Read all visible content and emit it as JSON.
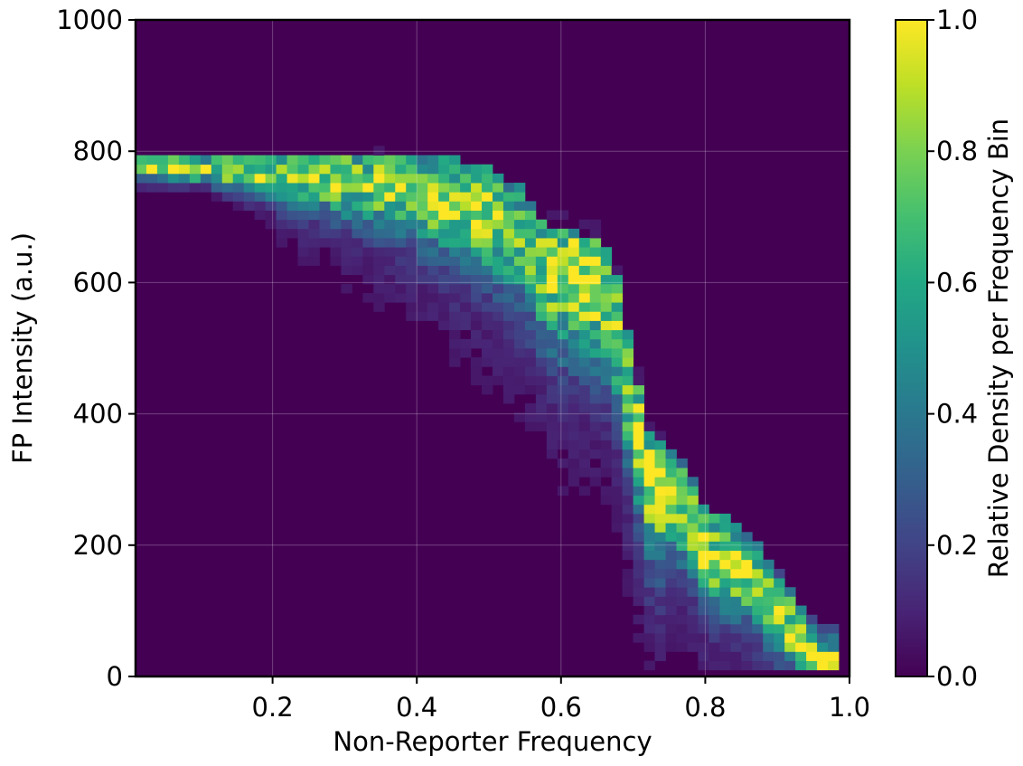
{
  "chart_data": {
    "type": "heatmap",
    "title": "",
    "xlabel": "Non-Reporter Frequency",
    "ylabel": "FP Intensity (a.u.)",
    "colorbar_label": "Relative Density per Frequency Bin",
    "xlim": [
      0.01,
      1.0
    ],
    "ylim": [
      0,
      1000
    ],
    "x_ticks": [
      0.2,
      0.4,
      0.6,
      0.8,
      1.0
    ],
    "x_tick_labels": [
      "0.2",
      "0.4",
      "0.6",
      "0.8",
      "1.0"
    ],
    "y_ticks": [
      0,
      200,
      400,
      600,
      800,
      1000
    ],
    "y_tick_labels": [
      "0",
      "200",
      "400",
      "600",
      "800",
      "1000"
    ],
    "colorbar_ticks": [
      0.0,
      0.2,
      0.4,
      0.6,
      0.8,
      1.0
    ],
    "colorbar_tick_labels": [
      "0.0",
      "0.2",
      "0.4",
      "0.6",
      "0.8",
      "1.0"
    ],
    "colorbar_range": [
      0,
      1
    ],
    "colormap": "viridis",
    "grid": true,
    "bin_width_x": 0.015,
    "bin_height_y": 14,
    "ridge": {
      "x": [
        0.01,
        0.1,
        0.2,
        0.3,
        0.38,
        0.45,
        0.5,
        0.55,
        0.58,
        0.62,
        0.66,
        0.68,
        0.7,
        0.72,
        0.75,
        0.78,
        0.8,
        0.83,
        0.86,
        0.88,
        0.9,
        0.92,
        0.94,
        0.96
      ],
      "y": [
        780,
        775,
        770,
        765,
        755,
        730,
        720,
        680,
        630,
        620,
        600,
        540,
        420,
        320,
        290,
        250,
        200,
        180,
        160,
        130,
        100,
        80,
        40,
        20
      ],
      "peak_density": [
        1.0,
        0.95,
        0.9,
        0.88,
        0.85,
        0.85,
        0.95,
        0.7,
        0.9,
        1.0,
        0.95,
        0.9,
        0.9,
        1.0,
        0.9,
        0.95,
        0.9,
        1.0,
        0.95,
        0.9,
        1.0,
        0.95,
        0.9,
        1.0
      ]
    }
  }
}
